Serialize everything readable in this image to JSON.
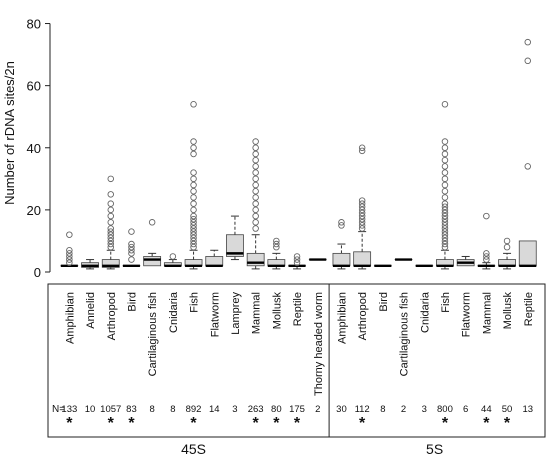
{
  "chart_data": {
    "type": "box",
    "ylabel": "Number of rDNA sites/2n",
    "ylim": [
      0,
      85
    ],
    "yticks": [
      0,
      20,
      40,
      60,
      80
    ],
    "n_label": "N=",
    "groups": [
      {
        "name": "45S",
        "categories": [
          {
            "label": "Amphibian",
            "n": "133",
            "significant": true,
            "q1": 2,
            "median": 2,
            "q3": 2,
            "whisker_low": 2,
            "whisker_high": 2,
            "outliers": [
              3,
              4,
              5,
              6,
              7,
              12
            ]
          },
          {
            "label": "Annelid",
            "n": "10",
            "significant": false,
            "q1": 1.5,
            "median": 2,
            "q3": 3,
            "whisker_low": 1,
            "whisker_high": 4,
            "outliers": []
          },
          {
            "label": "Arthropod",
            "n": "1057",
            "significant": true,
            "q1": 1.5,
            "median": 2,
            "q3": 4,
            "whisker_low": 1,
            "whisker_high": 7,
            "outliers": [
              8,
              9,
              10,
              11,
              12,
              13,
              14,
              16,
              18,
              20,
              22,
              25,
              30
            ]
          },
          {
            "label": "Bird",
            "n": "83",
            "significant": true,
            "q1": 2,
            "median": 2,
            "q3": 2,
            "whisker_low": 2,
            "whisker_high": 2,
            "outliers": [
              4,
              6,
              7,
              8,
              9,
              13
            ]
          },
          {
            "label": "Cartilaginous fish",
            "n": "8",
            "significant": false,
            "q1": 2,
            "median": 4,
            "q3": 5,
            "whisker_low": 2,
            "whisker_high": 6,
            "outliers": [
              16
            ]
          },
          {
            "label": "Cnidaria",
            "n": "8",
            "significant": false,
            "q1": 2,
            "median": 2,
            "q3": 3,
            "whisker_low": 2,
            "whisker_high": 4,
            "outliers": [
              5
            ]
          },
          {
            "label": "Fish",
            "n": "892",
            "significant": true,
            "q1": 2,
            "median": 2,
            "q3": 4,
            "whisker_low": 1,
            "whisker_high": 7,
            "outliers": [
              8,
              9,
              10,
              11,
              12,
              13,
              14,
              15,
              16,
              17,
              18,
              20,
              22,
              24,
              26,
              28,
              30,
              32,
              38,
              40,
              42,
              54
            ]
          },
          {
            "label": "Flatworm",
            "n": "14",
            "significant": false,
            "q1": 2,
            "median": 2,
            "q3": 5,
            "whisker_low": 2,
            "whisker_high": 7,
            "outliers": []
          },
          {
            "label": "Lamprey",
            "n": "3",
            "significant": false,
            "q1": 5,
            "median": 6,
            "q3": 12,
            "whisker_low": 4,
            "whisker_high": 18,
            "outliers": []
          },
          {
            "label": "Mammal",
            "n": "263",
            "significant": true,
            "q1": 2,
            "median": 3,
            "q3": 6,
            "whisker_low": 1,
            "whisker_high": 12,
            "outliers": [
              14,
              16,
              18,
              20,
              22,
              24,
              26,
              28,
              30,
              32,
              34,
              36,
              38,
              40,
              42
            ]
          },
          {
            "label": "Mollusk",
            "n": "80",
            "significant": true,
            "q1": 2,
            "median": 2,
            "q3": 4,
            "whisker_low": 1,
            "whisker_high": 6,
            "outliers": [
              8,
              9,
              10
            ]
          },
          {
            "label": "Reptile",
            "n": "175",
            "significant": true,
            "q1": 2,
            "median": 2,
            "q3": 2,
            "whisker_low": 1,
            "whisker_high": 2,
            "outliers": [
              3,
              4,
              5
            ]
          },
          {
            "label": "Thorny headed worm",
            "n": "2",
            "significant": false,
            "q1": 4,
            "median": 4,
            "q3": 4,
            "whisker_low": 4,
            "whisker_high": 4,
            "outliers": []
          }
        ]
      },
      {
        "name": "5S",
        "categories": [
          {
            "label": "Amphibian",
            "n": "30",
            "significant": false,
            "q1": 2,
            "median": 2,
            "q3": 6,
            "whisker_low": 1,
            "whisker_high": 9,
            "outliers": [
              15,
              16
            ]
          },
          {
            "label": "Arthropod",
            "n": "112",
            "significant": true,
            "q1": 2,
            "median": 2,
            "q3": 6.5,
            "whisker_low": 1,
            "whisker_high": 13,
            "outliers": [
              14,
              15,
              16,
              17,
              18,
              19,
              20,
              21,
              22,
              23,
              39,
              40
            ]
          },
          {
            "label": "Bird",
            "n": "8",
            "significant": false,
            "q1": 2,
            "median": 2,
            "q3": 2,
            "whisker_low": 2,
            "whisker_high": 2,
            "outliers": []
          },
          {
            "label": "Cartilaginous fish",
            "n": "2",
            "significant": false,
            "q1": 4,
            "median": 4,
            "q3": 4,
            "whisker_low": 4,
            "whisker_high": 4,
            "outliers": []
          },
          {
            "label": "Cnidaria",
            "n": "3",
            "significant": false,
            "q1": 2,
            "median": 2,
            "q3": 2,
            "whisker_low": 2,
            "whisker_high": 2,
            "outliers": []
          },
          {
            "label": "Fish",
            "n": "800",
            "significant": true,
            "q1": 2,
            "median": 2,
            "q3": 4,
            "whisker_low": 1,
            "whisker_high": 7,
            "outliers": [
              8,
              9,
              10,
              11,
              12,
              13,
              14,
              15,
              16,
              17,
              18,
              19,
              20,
              21,
              22,
              24,
              26,
              28,
              30,
              32,
              34,
              36,
              38,
              40,
              42,
              54
            ]
          },
          {
            "label": "Flatworm",
            "n": "6",
            "significant": false,
            "q1": 2,
            "median": 3,
            "q3": 4,
            "whisker_low": 2,
            "whisker_high": 5,
            "outliers": []
          },
          {
            "label": "Mammal",
            "n": "44",
            "significant": true,
            "q1": 2,
            "median": 2,
            "q3": 2,
            "whisker_low": 1,
            "whisker_high": 3,
            "outliers": [
              4,
              5,
              6,
              18
            ]
          },
          {
            "label": "Mollusk",
            "n": "50",
            "significant": true,
            "q1": 2,
            "median": 2,
            "q3": 4,
            "whisker_low": 1,
            "whisker_high": 6,
            "outliers": [
              8,
              10
            ]
          },
          {
            "label": "Reptile",
            "n": "13",
            "significant": false,
            "q1": 2,
            "median": 2,
            "q3": 10,
            "whisker_low": 2,
            "whisker_high": 10,
            "outliers": [
              34,
              68,
              74
            ]
          }
        ]
      }
    ]
  }
}
